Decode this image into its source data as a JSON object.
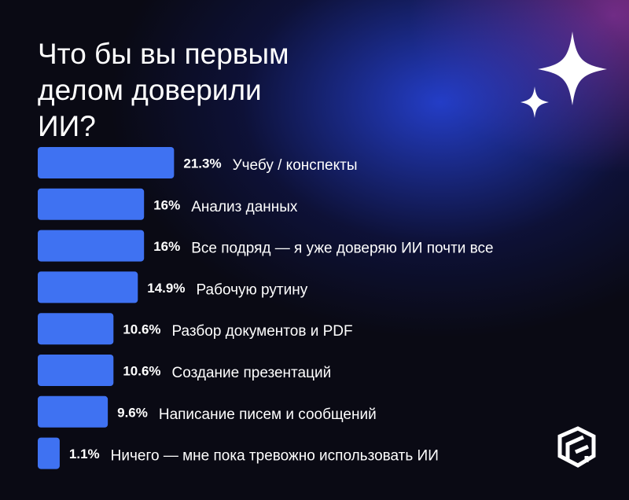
{
  "chart_data": {
    "type": "bar",
    "orientation": "horizontal",
    "title": "Что бы вы первым делом доверили ИИ?",
    "categories": [
      "Учебу / конспекты",
      "Анализ данных",
      "Все подряд — я уже доверяю ИИ почти все",
      "Рабочую рутину",
      "Разбор документов и PDF",
      "Создание презентаций",
      "Написание писем и сообщений",
      "Ничего — мне пока тревожно использовать ИИ"
    ],
    "values": [
      21.3,
      16,
      16,
      14.9,
      10.6,
      10.6,
      9.6,
      1.1
    ],
    "value_labels": [
      "21.3%",
      "16%",
      "16%",
      "14.9%",
      "10.6%",
      "10.6%",
      "9.6%",
      "1.1%"
    ],
    "color": "#3f72f2"
  }
}
